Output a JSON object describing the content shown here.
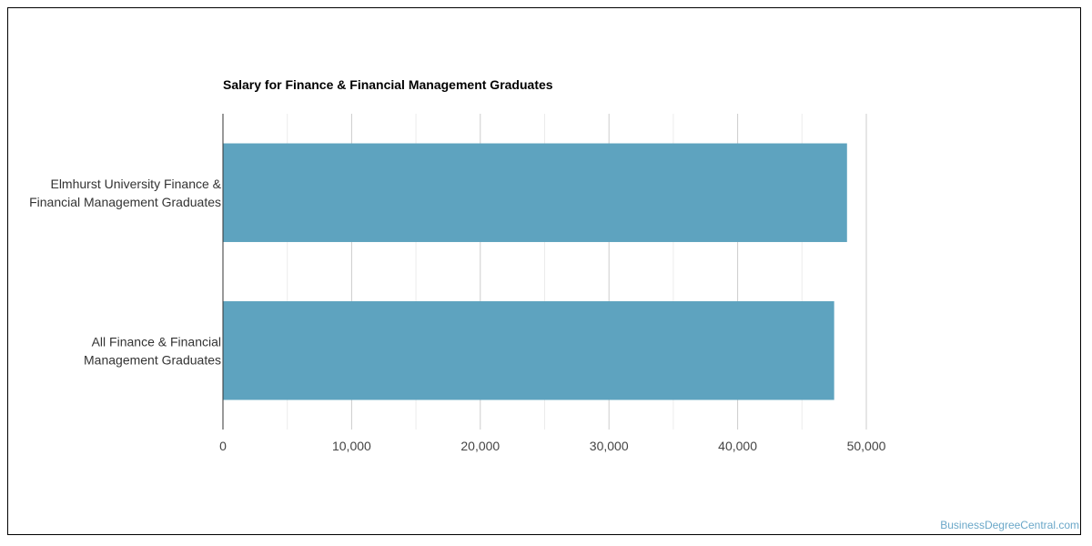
{
  "chart_data": {
    "type": "bar",
    "orientation": "horizontal",
    "title": "Salary for Finance & Financial Management Graduates",
    "categories": [
      [
        "Elmhurst University Finance &",
        "Financial Management Graduates"
      ],
      [
        "All Finance & Financial",
        "Management Graduates"
      ]
    ],
    "values": [
      48500,
      47500
    ],
    "xlim": [
      0,
      50000
    ],
    "ticks": [
      0,
      10000,
      20000,
      30000,
      40000,
      50000
    ],
    "tick_labels": [
      "0",
      "10,000",
      "20,000",
      "30,000",
      "40,000",
      "50,000"
    ],
    "grid": true,
    "bar_color": "#5ea3bf",
    "xlabel": "",
    "ylabel": ""
  },
  "credit": "BusinessDegreeCentral.com"
}
